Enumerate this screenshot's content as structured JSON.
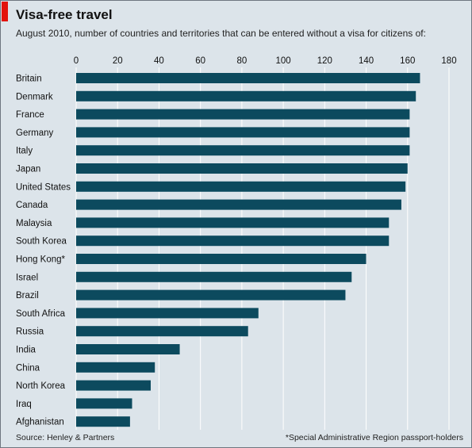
{
  "colors": {
    "background": "#dce4ea",
    "bar": "#0c4a5e",
    "accent": "#e3120b",
    "grid": "#ffffff"
  },
  "header": {
    "title": "Visa-free travel",
    "subtitle": "August 2010, number of countries and territories that can be entered without a visa for citizens of:"
  },
  "footer": {
    "source": "Source: Henley & Partners",
    "footnote": "*Special Administrative Region passport-holders"
  },
  "chart_data": {
    "type": "bar",
    "orientation": "horizontal",
    "title": "Visa-free travel",
    "subtitle": "August 2010, number of countries and territories that can be entered without a visa for citizens of:",
    "categories": [
      "Britain",
      "Denmark",
      "France",
      "Germany",
      "Italy",
      "Japan",
      "United States",
      "Canada",
      "Malaysia",
      "South Korea",
      "Hong Kong*",
      "Israel",
      "Brazil",
      "South Africa",
      "Russia",
      "India",
      "China",
      "North Korea",
      "Iraq",
      "Afghanistan"
    ],
    "values": [
      166,
      164,
      161,
      161,
      161,
      160,
      159,
      157,
      151,
      151,
      140,
      133,
      130,
      88,
      83,
      50,
      38,
      36,
      27,
      26
    ],
    "xlim": [
      0,
      180
    ],
    "xticks": [
      0,
      20,
      40,
      60,
      80,
      100,
      120,
      140,
      160,
      180
    ],
    "axis_position": "top",
    "grid": true
  }
}
